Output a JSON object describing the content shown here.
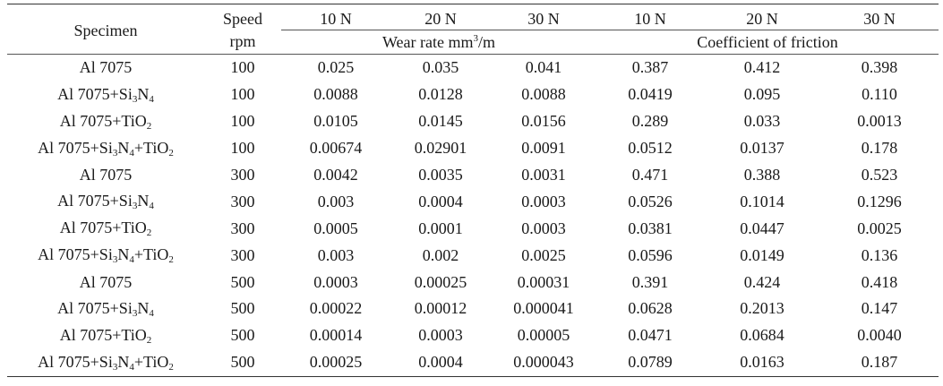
{
  "header": {
    "specimen": "Specimen",
    "speed": "Speed",
    "speed_unit": "rpm",
    "loads": [
      "10 N",
      "20 N",
      "30 N",
      "10 N",
      "20 N",
      "30 N"
    ],
    "wear_rate_prefix": "Wear rate mm",
    "wear_rate_exp": "3",
    "wear_rate_suffix": "/m",
    "cof": "Coefficient of friction"
  },
  "specimen_parts": {
    "al": "Al 7075",
    "si3n4": {
      "plus": "+Si",
      "s3": "3",
      "n": "N",
      "s4": "4"
    },
    "tio2": {
      "plus": "+TiO",
      "s2": "2"
    }
  },
  "rows": [
    {
      "type": "al",
      "speed": "100",
      "w10": "0.025",
      "w20": "0.035",
      "w30": "0.041",
      "c10": "0.387",
      "c20": "0.412",
      "c30": "0.398"
    },
    {
      "type": "si",
      "speed": "100",
      "w10": "0.0088",
      "w20": "0.0128",
      "w30": "0.0088",
      "c10": "0.0419",
      "c20": "0.095",
      "c30": "0.110"
    },
    {
      "type": "ti",
      "speed": "100",
      "w10": "0.0105",
      "w20": "0.0145",
      "w30": "0.0156",
      "c10": "0.289",
      "c20": "0.033",
      "c30": "0.0013"
    },
    {
      "type": "siti",
      "speed": "100",
      "w10": "0.00674",
      "w20": "0.02901",
      "w30": "0.0091",
      "c10": "0.0512",
      "c20": "0.0137",
      "c30": "0.178"
    },
    {
      "type": "al",
      "speed": "300",
      "w10": "0.0042",
      "w20": "0.0035",
      "w30": "0.0031",
      "c10": "0.471",
      "c20": "0.388",
      "c30": "0.523"
    },
    {
      "type": "si",
      "speed": "300",
      "w10": "0.003",
      "w20": "0.0004",
      "w30": "0.0003",
      "c10": "0.0526",
      "c20": "0.1014",
      "c30": "0.1296"
    },
    {
      "type": "ti",
      "speed": "300",
      "w10": "0.0005",
      "w20": "0.0001",
      "w30": "0.0003",
      "c10": "0.0381",
      "c20": "0.0447",
      "c30": "0.0025"
    },
    {
      "type": "siti",
      "speed": "300",
      "w10": "0.003",
      "w20": "0.002",
      "w30": "0.0025",
      "c10": "0.0596",
      "c20": "0.0149",
      "c30": "0.136"
    },
    {
      "type": "al",
      "speed": "500",
      "w10": "0.0003",
      "w20": "0.00025",
      "w30": "0.00031",
      "c10": "0.391",
      "c20": "0.424",
      "c30": "0.418"
    },
    {
      "type": "si",
      "speed": "500",
      "w10": "0.00022",
      "w20": "0.00012",
      "w30": "0.000041",
      "c10": "0.0628",
      "c20": "0.2013",
      "c30": "0.147"
    },
    {
      "type": "ti",
      "speed": "500",
      "w10": "0.00014",
      "w20": "0.0003",
      "w30": "0.00005",
      "c10": "0.0471",
      "c20": "0.0684",
      "c30": "0.0040"
    },
    {
      "type": "siti",
      "speed": "500",
      "w10": "0.00025",
      "w20": "0.0004",
      "w30": "0.000043",
      "c10": "0.0789",
      "c20": "0.0163",
      "c30": "0.187"
    }
  ]
}
